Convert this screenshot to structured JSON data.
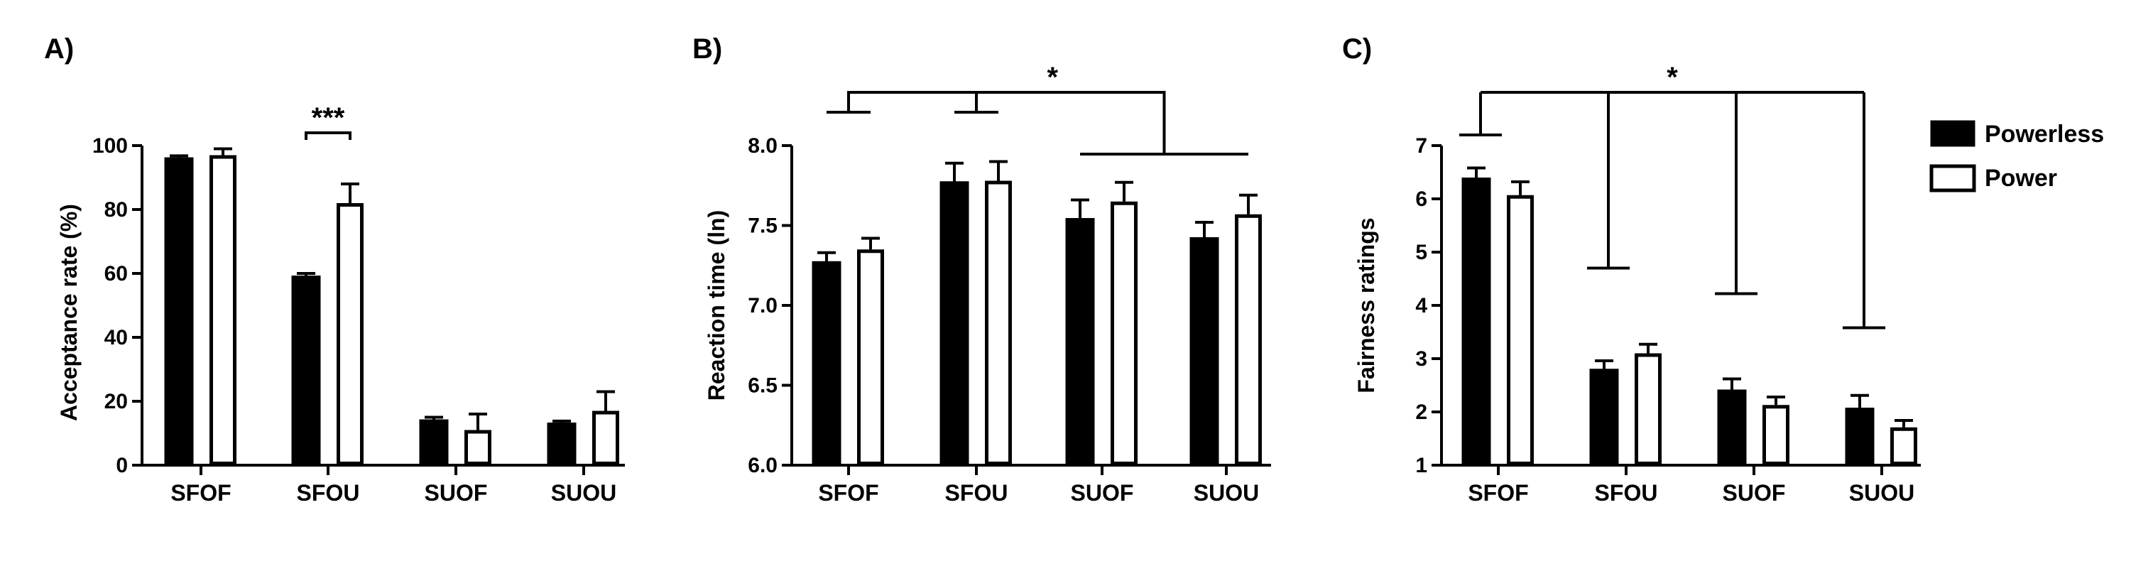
{
  "chart_data": [
    {
      "type": "bar",
      "panel_label": "A)",
      "categories": [
        "SFOF",
        "SFOU",
        "SUOF",
        "SUOU"
      ],
      "ylabel": "Acceptance rate (%)",
      "ylim": [
        0,
        100
      ],
      "yticks": [
        0,
        20,
        40,
        60,
        80,
        100
      ],
      "series": [
        {
          "name": "Powerless",
          "values": [
            96,
            59,
            14,
            13
          ],
          "errors": [
            0.8,
            1,
            1,
            0.8
          ]
        },
        {
          "name": "Power",
          "values": [
            97,
            82,
            11,
            17
          ],
          "errors": [
            2,
            6,
            5,
            6
          ]
        }
      ],
      "annotations": [
        {
          "text": "***",
          "type": "pair-bracket",
          "category": "SFOU"
        }
      ]
    },
    {
      "type": "bar",
      "panel_label": "B)",
      "categories": [
        "SFOF",
        "SFOU",
        "SUOF",
        "SUOU"
      ],
      "ylabel": "Reaction time (ln)",
      "ylim": [
        6.0,
        8.0
      ],
      "yticks": [
        "6.0",
        "6.5",
        "7.0",
        "7.5",
        "8.0"
      ],
      "series": [
        {
          "name": "Powerless",
          "values": [
            7.27,
            7.77,
            7.54,
            7.42
          ],
          "errors": [
            0.06,
            0.12,
            0.12,
            0.1
          ]
        },
        {
          "name": "Power",
          "values": [
            7.35,
            7.78,
            7.65,
            7.57
          ],
          "errors": [
            0.07,
            0.12,
            0.12,
            0.12
          ]
        }
      ],
      "annotations": [
        {
          "text": "*",
          "type": "group-bracket",
          "groups": [
            [
              "SFOF"
            ],
            [
              "SFOU"
            ],
            [
              "SUOF",
              "SUOU"
            ]
          ]
        }
      ]
    },
    {
      "type": "bar",
      "panel_label": "C)",
      "categories": [
        "SFOF",
        "SFOU",
        "SUOF",
        "SUOU"
      ],
      "ylabel": "Fairness ratings",
      "ylim": [
        1,
        7
      ],
      "yticks": [
        1,
        2,
        3,
        4,
        5,
        6,
        7
      ],
      "series": [
        {
          "name": "Powerless",
          "values": [
            6.38,
            2.79,
            2.4,
            2.06
          ],
          "errors": [
            0.2,
            0.17,
            0.22,
            0.25
          ]
        },
        {
          "name": "Power",
          "values": [
            6.07,
            3.1,
            2.13,
            1.71
          ],
          "errors": [
            0.25,
            0.17,
            0.15,
            0.13
          ]
        }
      ],
      "annotations": [
        {
          "text": "*",
          "type": "comb-bracket",
          "drops_to": [
            7.2,
            4.7,
            4.22,
            3.58
          ]
        }
      ]
    }
  ],
  "legend": {
    "placement": "right",
    "items": [
      {
        "label": "Powerless",
        "fill": "#000000"
      },
      {
        "label": "Power",
        "fill": "#ffffff"
      }
    ]
  },
  "colors": {
    "powerless": "#000000",
    "power": "#ffffff",
    "stroke": "#000000"
  }
}
